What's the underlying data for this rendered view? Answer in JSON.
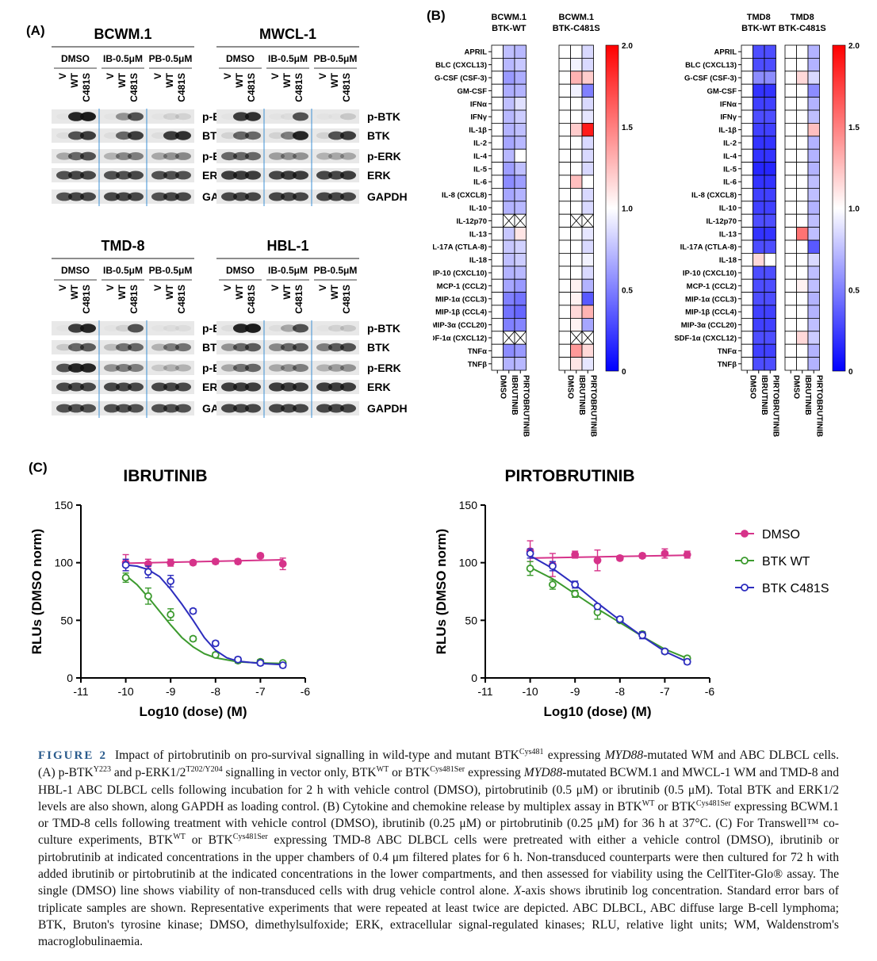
{
  "panel_labels": {
    "a": "(A)",
    "b": "(B)",
    "c": "(C)"
  },
  "blots": [
    {
      "title": "BCWM.1",
      "side": "right"
    },
    {
      "title": "MWCL-1",
      "side": "right"
    },
    {
      "title": "TMD-8",
      "side": "right"
    },
    {
      "title": "HBL-1",
      "side": "right"
    }
  ],
  "blot_treatments": [
    "DMSO",
    "IB-0.5μM",
    "PB-0.5μM"
  ],
  "blot_lanes": [
    "V",
    "WT",
    "C481S"
  ],
  "blot_bands": [
    "p-BTK",
    "BTK",
    "p-ERK",
    "ERK",
    "GAPDH"
  ],
  "heatmap": {
    "rows": [
      "APRIL",
      "BLC (CXCL13)",
      "G-CSF (CSF-3)",
      "GM-CSF",
      "IFNα",
      "IFNγ",
      "IL-1β",
      "IL-2",
      "IL-4",
      "IL-5",
      "IL-6",
      "IL-8 (CXCL8)",
      "IL-10",
      "IL-12p70",
      "IL-13",
      "IL-17A (CTLA-8)",
      "IL-18",
      "IP-10 (CXCL10)",
      "MCP-1 (CCL2)",
      "MIP-1α (CCL3)",
      "MIP-1β (CCL4)",
      "MIP-3α (CCL20)",
      "SDF-1α (CXCL12)",
      "TNFα",
      "TNFβ"
    ],
    "columns": [
      "DMSO",
      "IBRUTINIB",
      "PIRTOBRUTINIB"
    ],
    "colorbar_ticks": [
      "2.0",
      "1.5",
      "1.0",
      "0.5",
      "0"
    ],
    "colors": {
      "low": "#0000ff",
      "mid": "#ffffff",
      "high": "#ff0000"
    },
    "groups": [
      {
        "title_line1": "BCWM.1",
        "title_line2": "BTK-WT",
        "ibrutinib": [
          0.75,
          0.72,
          0.6,
          0.68,
          0.75,
          0.72,
          0.7,
          0.65,
          0.72,
          0.62,
          0.55,
          0.65,
          0.7,
          null,
          0.78,
          0.78,
          0.75,
          0.7,
          0.65,
          0.5,
          0.45,
          0.5,
          null,
          0.55,
          0.7
        ],
        "pirtobrutinib": [
          0.72,
          0.78,
          0.68,
          0.7,
          0.88,
          0.8,
          0.75,
          0.72,
          1.0,
          0.75,
          0.62,
          0.7,
          0.72,
          null,
          1.1,
          0.82,
          0.8,
          0.72,
          0.6,
          0.45,
          0.4,
          0.52,
          null,
          0.6,
          0.72
        ]
      },
      {
        "title_line1": "BCWM.1",
        "title_line2": "BTK-C481S",
        "ibrutinib": [
          1.0,
          0.95,
          1.3,
          0.95,
          1.0,
          1.0,
          1.2,
          1.0,
          1.0,
          1.0,
          1.25,
          1.0,
          1.0,
          null,
          1.0,
          1.0,
          1.0,
          1.0,
          1.05,
          1.05,
          1.15,
          1.05,
          null,
          1.4,
          1.1
        ],
        "pirtobrutinib": [
          0.85,
          0.85,
          1.2,
          0.5,
          0.85,
          0.9,
          1.9,
          0.85,
          0.85,
          0.85,
          1.0,
          0.85,
          0.85,
          null,
          0.9,
          0.85,
          0.95,
          0.85,
          0.7,
          0.35,
          1.3,
          0.65,
          null,
          1.15,
          0.9
        ]
      },
      {
        "title_line1": "TMD8",
        "title_line2": "BTK-WT",
        "ibrutinib": [
          0.3,
          0.3,
          0.55,
          0.2,
          0.25,
          0.3,
          0.25,
          0.2,
          0.2,
          0.15,
          0.2,
          0.25,
          0.25,
          0.3,
          0.2,
          0.3,
          1.15,
          0.3,
          0.3,
          0.3,
          0.25,
          0.25,
          0.3,
          0.25,
          0.3
        ],
        "pirtobrutinib": [
          0.3,
          0.3,
          0.55,
          0.2,
          0.25,
          0.3,
          0.25,
          0.2,
          0.2,
          0.15,
          0.2,
          0.25,
          0.25,
          0.3,
          0.2,
          0.3,
          1.0,
          0.3,
          0.3,
          0.3,
          0.25,
          0.25,
          0.3,
          0.25,
          0.3
        ]
      },
      {
        "title_line1": "TMD8",
        "title_line2": "BTK-C481S",
        "ibrutinib": [
          1.0,
          1.0,
          1.15,
          1.0,
          1.0,
          1.0,
          1.0,
          1.0,
          1.0,
          1.0,
          1.0,
          1.0,
          1.0,
          1.0,
          1.55,
          1.0,
          1.0,
          1.0,
          1.05,
          1.0,
          1.0,
          1.0,
          1.15,
          1.0,
          1.0
        ],
        "pirtobrutinib": [
          0.7,
          0.7,
          0.85,
          0.55,
          0.7,
          0.75,
          1.25,
          0.7,
          0.7,
          0.7,
          0.75,
          0.75,
          0.7,
          0.75,
          0.75,
          0.35,
          0.85,
          0.75,
          0.75,
          0.7,
          0.7,
          0.75,
          0.8,
          0.7,
          0.7
        ]
      }
    ]
  },
  "chart_data": [
    {
      "type": "scatter",
      "title": "IBRUTINIB",
      "xlabel": "Log10 (dose) (M)",
      "ylabel": "RLUs (DMSO norm)",
      "xlim": [
        -11,
        -6
      ],
      "ylim": [
        0,
        150
      ],
      "xticks": [
        "-11",
        "-10",
        "-9",
        "-8",
        "-7",
        "-6"
      ],
      "yticks": [
        "0",
        "50",
        "100",
        "150"
      ],
      "legend": "none",
      "series": [
        {
          "color": "#d6338a",
          "marker": "filled",
          "x": [
            -10,
            -9.5,
            -9,
            -8.5,
            -8,
            -7.5,
            -7,
            -6.5
          ],
          "y": [
            100,
            99,
            100,
            100,
            101,
            101,
            106,
            99
          ],
          "err": [
            7,
            4,
            3,
            2,
            2,
            2,
            2,
            5
          ],
          "fit": [
            [
              -10,
              99.5
            ],
            [
              -6.5,
              102.5
            ]
          ]
        },
        {
          "color": "#3c9a2e",
          "marker": "open",
          "x": [
            -10,
            -9.5,
            -9,
            -8.5,
            -8,
            -7.5,
            -7,
            -6.5
          ],
          "y": [
            87,
            71,
            55,
            34,
            20,
            15,
            14,
            13
          ],
          "err": [
            4,
            7,
            5,
            2,
            2,
            2,
            2,
            1
          ],
          "fit": [
            [
              -10,
              89
            ],
            [
              -9.75,
              81
            ],
            [
              -9.5,
              70
            ],
            [
              -9.25,
              58
            ],
            [
              -9,
              46
            ],
            [
              -8.75,
              35
            ],
            [
              -8.5,
              27
            ],
            [
              -8.25,
              21
            ],
            [
              -8,
              17.5
            ],
            [
              -7.5,
              14
            ],
            [
              -7,
              13
            ],
            [
              -6.5,
              12.5
            ]
          ]
        },
        {
          "color": "#2d2dbe",
          "marker": "open",
          "x": [
            -10,
            -9.5,
            -9,
            -8.5,
            -8,
            -7.5,
            -7,
            -6.5
          ],
          "y": [
            98,
            92,
            84,
            58,
            30,
            16,
            13,
            11
          ],
          "err": [
            5,
            5,
            5,
            2,
            2,
            2,
            2,
            2
          ],
          "fit": [
            [
              -10,
              98
            ],
            [
              -9.75,
              97
            ],
            [
              -9.5,
              94
            ],
            [
              -9.25,
              88
            ],
            [
              -9,
              77
            ],
            [
              -8.75,
              64
            ],
            [
              -8.5,
              50
            ],
            [
              -8.25,
              35
            ],
            [
              -8,
              24
            ],
            [
              -7.75,
              17.5
            ],
            [
              -7.5,
              14.5
            ],
            [
              -7,
              12.5
            ],
            [
              -6.5,
              11.5
            ]
          ]
        }
      ]
    },
    {
      "type": "scatter",
      "title": "PIRTOBRUTINIB",
      "xlabel": "Log10 (dose) (M)",
      "ylabel": "RLUs (DMSO norm)",
      "xlim": [
        -11,
        -6
      ],
      "ylim": [
        0,
        150
      ],
      "xticks": [
        "-11",
        "-10",
        "-9",
        "-8",
        "-7",
        "-6"
      ],
      "yticks": [
        "0",
        "50",
        "100",
        "150"
      ],
      "legend": "top-right",
      "series": [
        {
          "name": "DMSO",
          "color": "#d6338a",
          "marker": "filled",
          "x": [
            -10,
            -9.5,
            -9,
            -8.5,
            -8,
            -7.5,
            -7,
            -6.5
          ],
          "y": [
            110,
            98,
            107,
            102,
            104,
            106,
            108,
            107
          ],
          "err": [
            9,
            10,
            3,
            9,
            2,
            2,
            4,
            3
          ],
          "fit": [
            [
              -10,
              104
            ],
            [
              -6.5,
              106.5
            ]
          ]
        },
        {
          "name": "BTK WT",
          "color": "#3c9a2e",
          "marker": "open",
          "x": [
            -10,
            -9.5,
            -9,
            -8.5,
            -8,
            -7.5,
            -7,
            -6.5
          ],
          "y": [
            95,
            81,
            73,
            57,
            50,
            38,
            23,
            17
          ],
          "err": [
            6,
            4,
            3,
            6,
            2,
            2,
            2,
            2
          ],
          "fit": [
            [
              -10,
              96
            ],
            [
              -9.5,
              86
            ],
            [
              -9,
              73
            ],
            [
              -8.5,
              60
            ],
            [
              -8,
              48
            ],
            [
              -7.5,
              36
            ],
            [
              -7,
              25
            ],
            [
              -6.5,
              17
            ]
          ]
        },
        {
          "name": "BTK C481S",
          "color": "#2d2dbe",
          "marker": "open",
          "x": [
            -10,
            -9.5,
            -9,
            -8.5,
            -8,
            -7.5,
            -7,
            -6.5
          ],
          "y": [
            108,
            97,
            81,
            62,
            51,
            37,
            23,
            14
          ],
          "err": [
            4,
            4,
            3,
            2,
            2,
            3,
            2,
            2
          ],
          "fit": [
            [
              -10,
              106
            ],
            [
              -9.5,
              95
            ],
            [
              -9,
              81
            ],
            [
              -8.5,
              65
            ],
            [
              -8,
              50
            ],
            [
              -7.5,
              36
            ],
            [
              -7,
              23
            ],
            [
              -6.5,
              14
            ]
          ]
        }
      ]
    }
  ],
  "caption": {
    "fig_label": "FIGURE 2",
    "t1": "Impact of pirtobrutinib on pro-survival signalling in wild-type and mutant BTK",
    "s1": "Cys481",
    "t2": " expressing ",
    "i1": "MYD88",
    "t3": "-mutated WM and ABC DLBCL cells. (A) p-BTK",
    "s2": "Y223",
    "t4": " and p-ERK1/2",
    "s3": "T202/Y204",
    "t5": " signalling in vector only, BTK",
    "s4": "WT",
    "t6": " or BTK",
    "s5": "Cys481Ser",
    "t7": " expressing ",
    "i2": "MYD88",
    "t8": "-mutated BCWM.1 and MWCL-1 WM and TMD-8 and HBL-1 ABC DLBCL cells following incubation for 2 h with vehicle control (DMSO), pirtobrutinib (0.5 μM) or ibrutinib (0.5 μM). Total BTK and ERK1/2 levels are also shown, along GAPDH as loading control. (B) Cytokine and chemokine release by multiplex assay in BTK",
    "s6": "WT",
    "t9": " or BTK",
    "s7": "Cys481Ser",
    "t10": " expressing BCWM.1 or TMD-8 cells following treatment with vehicle control (DMSO), ibrutinib (0.25 μM) or pirtobrutinib (0.25 μM) for 36 h at 37°C. (C) For Transwell™ co-culture experiments, BTK",
    "s8": "WT",
    "t11": " or BTK",
    "s9": "Cys481Ser",
    "t12": " expressing TMD-8 ABC DLBCL cells were pretreated with either a vehicle control (DMSO), ibrutinib or pirtobrutinib at indicated concentrations in the upper chambers of 0.4 μm filtered plates for 6 h. Non-transduced counterparts were then cultured for 72 h with added ibrutinib or pirtobrutinib at the indicated concentrations in the lower compartments, and then assessed for viability using the CellTiter-Glo® assay. The single (DMSO) line shows viability of non-transduced cells with drug vehicle control alone. ",
    "i3": "X",
    "t13": "-axis shows ibrutinib log concentration. Standard error bars of triplicate samples are shown. Representative experiments that were repeated at least twice are depicted. ABC DLBCL, ABC diffuse large B-cell lymphoma; BTK, Bruton's tyrosine kinase; DMSO, dimethylsulfoxide; ERK, extracellular signal-regulated kinases; RLU, relative light units; WM, Waldenstrom's macroglobulinaemia."
  }
}
